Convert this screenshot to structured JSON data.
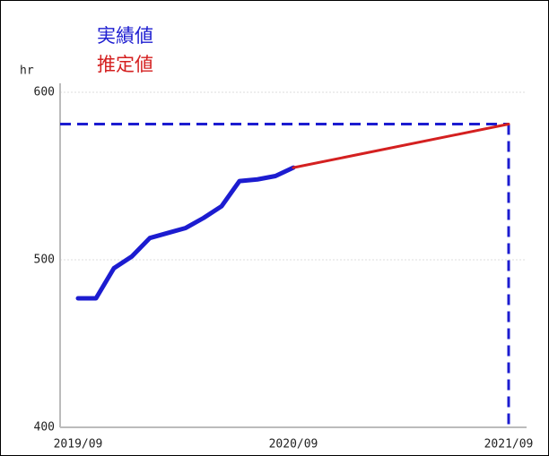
{
  "chart_data": {
    "type": "line",
    "y_label": "hr",
    "xlim": [
      "2019/08",
      "2021/09"
    ],
    "xticks": [
      "2019/09",
      "2020/09",
      "2021/09"
    ],
    "ylim": [
      400,
      600
    ],
    "yticks": [
      400,
      500,
      600
    ],
    "grid": true,
    "series": [
      {
        "name": "実績値",
        "color": "#1c1cd0",
        "x": [
          "2019/09",
          "2019/10",
          "2019/11",
          "2019/12",
          "2020/01",
          "2020/02",
          "2020/03",
          "2020/04",
          "2020/05",
          "2020/06",
          "2020/07",
          "2020/08",
          "2020/09"
        ],
        "values": [
          477,
          477,
          495,
          502,
          513,
          516,
          519,
          525,
          532,
          547,
          548,
          550,
          555
        ]
      },
      {
        "name": "推定値",
        "color": "#d42020",
        "x": [
          "2020/09",
          "2021/09"
        ],
        "values": [
          555,
          581
        ],
        "reference": true
      }
    ]
  }
}
